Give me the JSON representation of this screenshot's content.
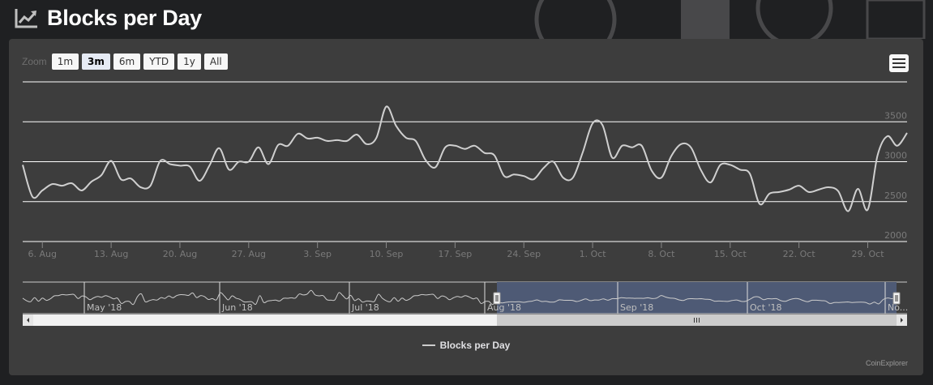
{
  "header": {
    "title": "Blocks per Day",
    "icon": "line-chart-icon"
  },
  "zoom": {
    "label": "Zoom",
    "buttons": [
      "1m",
      "3m",
      "6m",
      "YTD",
      "1y",
      "All"
    ],
    "selected": "3m"
  },
  "menu": {
    "icon": "hamburger-menu-icon"
  },
  "colors": {
    "background": "#3d3d3d",
    "line": "#cfcfcf",
    "navigator_selection": "#4e5a75",
    "grid": "#ffffff"
  },
  "chart_data": {
    "type": "line",
    "title": "Blocks per Day",
    "ylim": [
      2000,
      4000
    ],
    "y_ticks": [
      2000,
      2500,
      3000,
      3500
    ],
    "x_ticks": [
      "6. Aug",
      "13. Aug",
      "20. Aug",
      "27. Aug",
      "3. Sep",
      "10. Sep",
      "17. Sep",
      "24. Sep",
      "1. Oct",
      "8. Oct",
      "15. Oct",
      "22. Oct",
      "29. Oct"
    ],
    "grid": true,
    "legend": "bottom-center",
    "series": [
      {
        "name": "Blocks per Day",
        "x": [
          "2018-08-04",
          "2018-08-05",
          "2018-08-06",
          "2018-08-07",
          "2018-08-08",
          "2018-08-09",
          "2018-08-10",
          "2018-08-11",
          "2018-08-12",
          "2018-08-13",
          "2018-08-14",
          "2018-08-15",
          "2018-08-16",
          "2018-08-17",
          "2018-08-18",
          "2018-08-19",
          "2018-08-20",
          "2018-08-21",
          "2018-08-22",
          "2018-08-23",
          "2018-08-24",
          "2018-08-25",
          "2018-08-26",
          "2018-08-27",
          "2018-08-28",
          "2018-08-29",
          "2018-08-30",
          "2018-08-31",
          "2018-09-01",
          "2018-09-02",
          "2018-09-03",
          "2018-09-04",
          "2018-09-05",
          "2018-09-06",
          "2018-09-07",
          "2018-09-08",
          "2018-09-09",
          "2018-09-10",
          "2018-09-11",
          "2018-09-12",
          "2018-09-13",
          "2018-09-14",
          "2018-09-15",
          "2018-09-16",
          "2018-09-17",
          "2018-09-18",
          "2018-09-19",
          "2018-09-20",
          "2018-09-21",
          "2018-09-22",
          "2018-09-23",
          "2018-09-24",
          "2018-09-25",
          "2018-09-26",
          "2018-09-27",
          "2018-09-28",
          "2018-09-29",
          "2018-09-30",
          "2018-10-01",
          "2018-10-02",
          "2018-10-03",
          "2018-10-04",
          "2018-10-05",
          "2018-10-06",
          "2018-10-07",
          "2018-10-08",
          "2018-10-09",
          "2018-10-10",
          "2018-10-11",
          "2018-10-12",
          "2018-10-13",
          "2018-10-14",
          "2018-10-15",
          "2018-10-16",
          "2018-10-17",
          "2018-10-18",
          "2018-10-19",
          "2018-10-20",
          "2018-10-21",
          "2018-10-22",
          "2018-10-23",
          "2018-10-24",
          "2018-10-25",
          "2018-10-26",
          "2018-10-27",
          "2018-10-28",
          "2018-10-29",
          "2018-10-30",
          "2018-10-31",
          "2018-11-01",
          "2018-11-02"
        ],
        "values": [
          2960,
          2560,
          2640,
          2720,
          2700,
          2730,
          2640,
          2750,
          2830,
          3010,
          2780,
          2790,
          2680,
          2700,
          3010,
          2970,
          2950,
          2940,
          2760,
          2950,
          3170,
          2900,
          3000,
          3000,
          3180,
          2970,
          3210,
          3200,
          3350,
          3290,
          3300,
          3260,
          3270,
          3260,
          3340,
          3220,
          3300,
          3690,
          3450,
          3300,
          3260,
          3020,
          2930,
          3180,
          3200,
          3160,
          3200,
          3110,
          3080,
          2820,
          2840,
          2820,
          2780,
          2920,
          3000,
          2800,
          2800,
          3120,
          3480,
          3460,
          3050,
          3200,
          3180,
          3200,
          2890,
          2800,
          3070,
          3220,
          3180,
          2900,
          2740,
          2960,
          2960,
          2900,
          2850,
          2470,
          2600,
          2620,
          2650,
          2700,
          2620,
          2650,
          2680,
          2630,
          2380,
          2660,
          2400,
          3080,
          3320,
          3200,
          3360
        ]
      }
    ],
    "navigator": {
      "labels": [
        "May '18",
        "Jun '18",
        "Jul '18",
        "Aug '18",
        "Sep '18",
        "Oct '18",
        "No..."
      ],
      "selected_range": [
        "6. Aug",
        "2. Nov"
      ]
    },
    "credits": "CoinExplorer"
  }
}
